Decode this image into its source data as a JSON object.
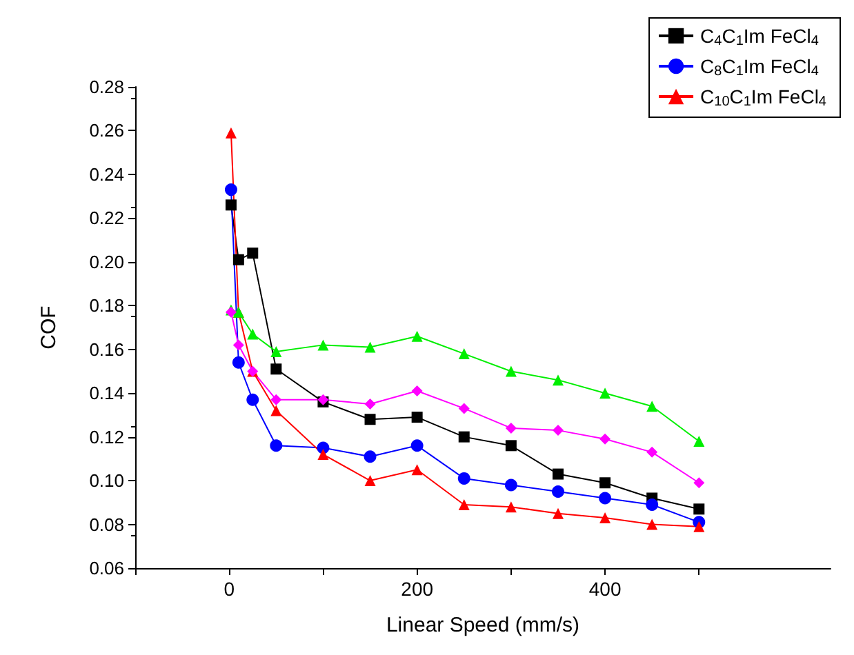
{
  "chart_data": {
    "type": "line",
    "xlabel": "Linear Speed (mm/s)",
    "ylabel": "COF",
    "x": [
      2,
      10,
      25,
      50,
      100,
      150,
      200,
      250,
      300,
      350,
      400,
      450,
      500
    ],
    "xlim": [
      -100,
      640
    ],
    "xticks": [
      {
        "value": -100,
        "label": null
      },
      0,
      {
        "value": 100,
        "label": null
      },
      200,
      {
        "value": 300,
        "label": null
      },
      400,
      {
        "value": 500,
        "label": null
      }
    ],
    "ylim": [
      0.06,
      0.28
    ],
    "yticks": [
      0.06,
      0.08,
      {
        "value": 0.1,
        "label": "0.10"
      },
      0.12,
      0.14,
      0.16,
      0.18,
      {
        "value": 0.2,
        "label": "0.20"
      },
      0.22,
      0.24,
      0.26,
      0.28
    ],
    "grid": false,
    "legend": "top right",
    "line_style": "solid",
    "series": [
      {
        "name": "C$_{4}$C$_{1}$Im FeCl$_{4}$",
        "color": "#000000",
        "marker": "square",
        "values": [
          0.226,
          0.201,
          0.204,
          0.151,
          0.136,
          0.128,
          0.129,
          0.12,
          0.116,
          0.103,
          0.099,
          0.092,
          0.087
        ]
      },
      {
        "name": "C$_{8}$C$_{1}$Im FeCl$_{4}$",
        "color": "#0000ff",
        "marker": "circle",
        "values": [
          0.233,
          0.154,
          0.137,
          0.116,
          0.115,
          0.111,
          0.116,
          0.101,
          0.098,
          0.095,
          0.092,
          0.089,
          0.081
        ]
      },
      {
        "name": "C$_{10}$C$_{1}$Im FeCl$_{4}$",
        "color": "#ff0000",
        "marker": "triangle",
        "values": [
          0.259,
          0.177,
          0.15,
          0.132,
          0.112,
          0.1,
          0.105,
          0.089,
          0.088,
          0.085,
          0.083,
          0.08,
          0.079
        ]
      },
      {
        "color": "#00ee00",
        "marker": "triangle",
        "values": [
          0.178,
          0.177,
          0.167,
          0.159,
          0.162,
          0.161,
          0.166,
          0.158,
          0.15,
          0.146,
          0.14,
          0.134,
          0.118
        ]
      },
      {
        "color": "#ff00ff",
        "marker": "diamond",
        "values": [
          0.177,
          0.162,
          0.15,
          0.137,
          0.137,
          0.135,
          0.141,
          0.133,
          0.124,
          0.123,
          0.119,
          0.113,
          0.099
        ]
      }
    ]
  }
}
